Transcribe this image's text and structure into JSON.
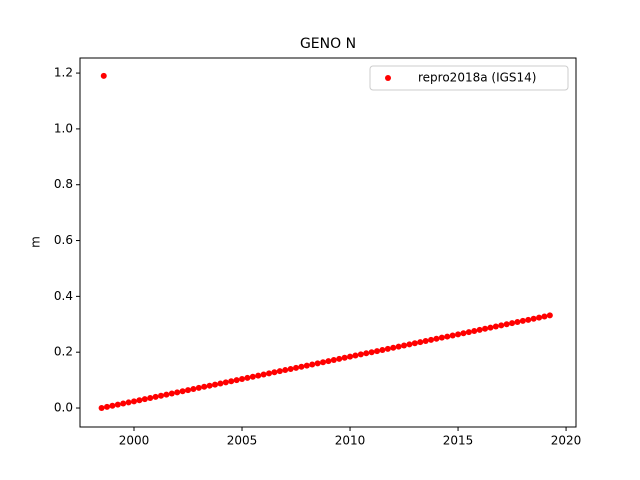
{
  "chart_data": {
    "type": "scatter",
    "title": "GENO N",
    "y_label": "m",
    "xlim": [
      1997.5,
      2020.46
    ],
    "ylim": [
      -0.068,
      1.254
    ],
    "xticks": [
      2000,
      2005,
      2010,
      2015,
      2020
    ],
    "yticks": [
      {
        "value": 0,
        "label": "0.0"
      },
      0.2,
      0.4,
      0.6,
      0.8,
      {
        "value": 1,
        "label": "1.0"
      },
      1.2
    ],
    "grid": false,
    "legend": "upper right",
    "series": [
      {
        "name": "repro2018a (IGS14)",
        "color": "#ff0000",
        "x": [
          1998.5,
          1998.75,
          1999,
          1999.25,
          1999.5,
          1999.75,
          2000,
          2000.25,
          2000.5,
          2000.75,
          2001,
          2001.25,
          2001.5,
          2001.75,
          2002,
          2002.25,
          2002.5,
          2002.75,
          2003,
          2003.25,
          2003.5,
          2003.75,
          2004,
          2004.25,
          2004.5,
          2004.75,
          2005,
          2005.25,
          2005.5,
          2005.75,
          2006,
          2006.25,
          2006.5,
          2006.75,
          2007,
          2007.25,
          2007.5,
          2007.75,
          2008,
          2008.25,
          2008.5,
          2008.75,
          2009,
          2009.25,
          2009.5,
          2009.75,
          2010,
          2010.25,
          2010.5,
          2010.75,
          2011,
          2011.25,
          2011.5,
          2011.75,
          2012,
          2012.25,
          2012.5,
          2012.75,
          2013,
          2013.25,
          2013.5,
          2013.75,
          2014,
          2014.25,
          2014.5,
          2014.75,
          2015,
          2015.25,
          2015.5,
          2015.75,
          2016,
          2016.25,
          2016.5,
          2016.75,
          2017,
          2017.25,
          2017.5,
          2017.75,
          2018,
          2018.25,
          2018.5,
          2018.75,
          2019,
          2019.25,
          1998.6
        ],
        "values": [
          0,
          0.004,
          0.008,
          0.012,
          0.016,
          0.02,
          0.024,
          0.028,
          0.032,
          0.036,
          0.04,
          0.044,
          0.048,
          0.052,
          0.056,
          0.06,
          0.064,
          0.068,
          0.072,
          0.076,
          0.08,
          0.084,
          0.088,
          0.092,
          0.096,
          0.1,
          0.104,
          0.108,
          0.112,
          0.116,
          0.12,
          0.124,
          0.128,
          0.132,
          0.136,
          0.14,
          0.144,
          0.148,
          0.152,
          0.156,
          0.16,
          0.164,
          0.168,
          0.172,
          0.176,
          0.18,
          0.184,
          0.188,
          0.192,
          0.196,
          0.2,
          0.204,
          0.208,
          0.212,
          0.216,
          0.22,
          0.224,
          0.228,
          0.232,
          0.236,
          0.24,
          0.244,
          0.248,
          0.252,
          0.256,
          0.26,
          0.264,
          0.268,
          0.272,
          0.276,
          0.28,
          0.284,
          0.288,
          0.292,
          0.296,
          0.3,
          0.304,
          0.308,
          0.312,
          0.316,
          0.32,
          0.324,
          0.328,
          0.332,
          1.19
        ]
      }
    ]
  }
}
